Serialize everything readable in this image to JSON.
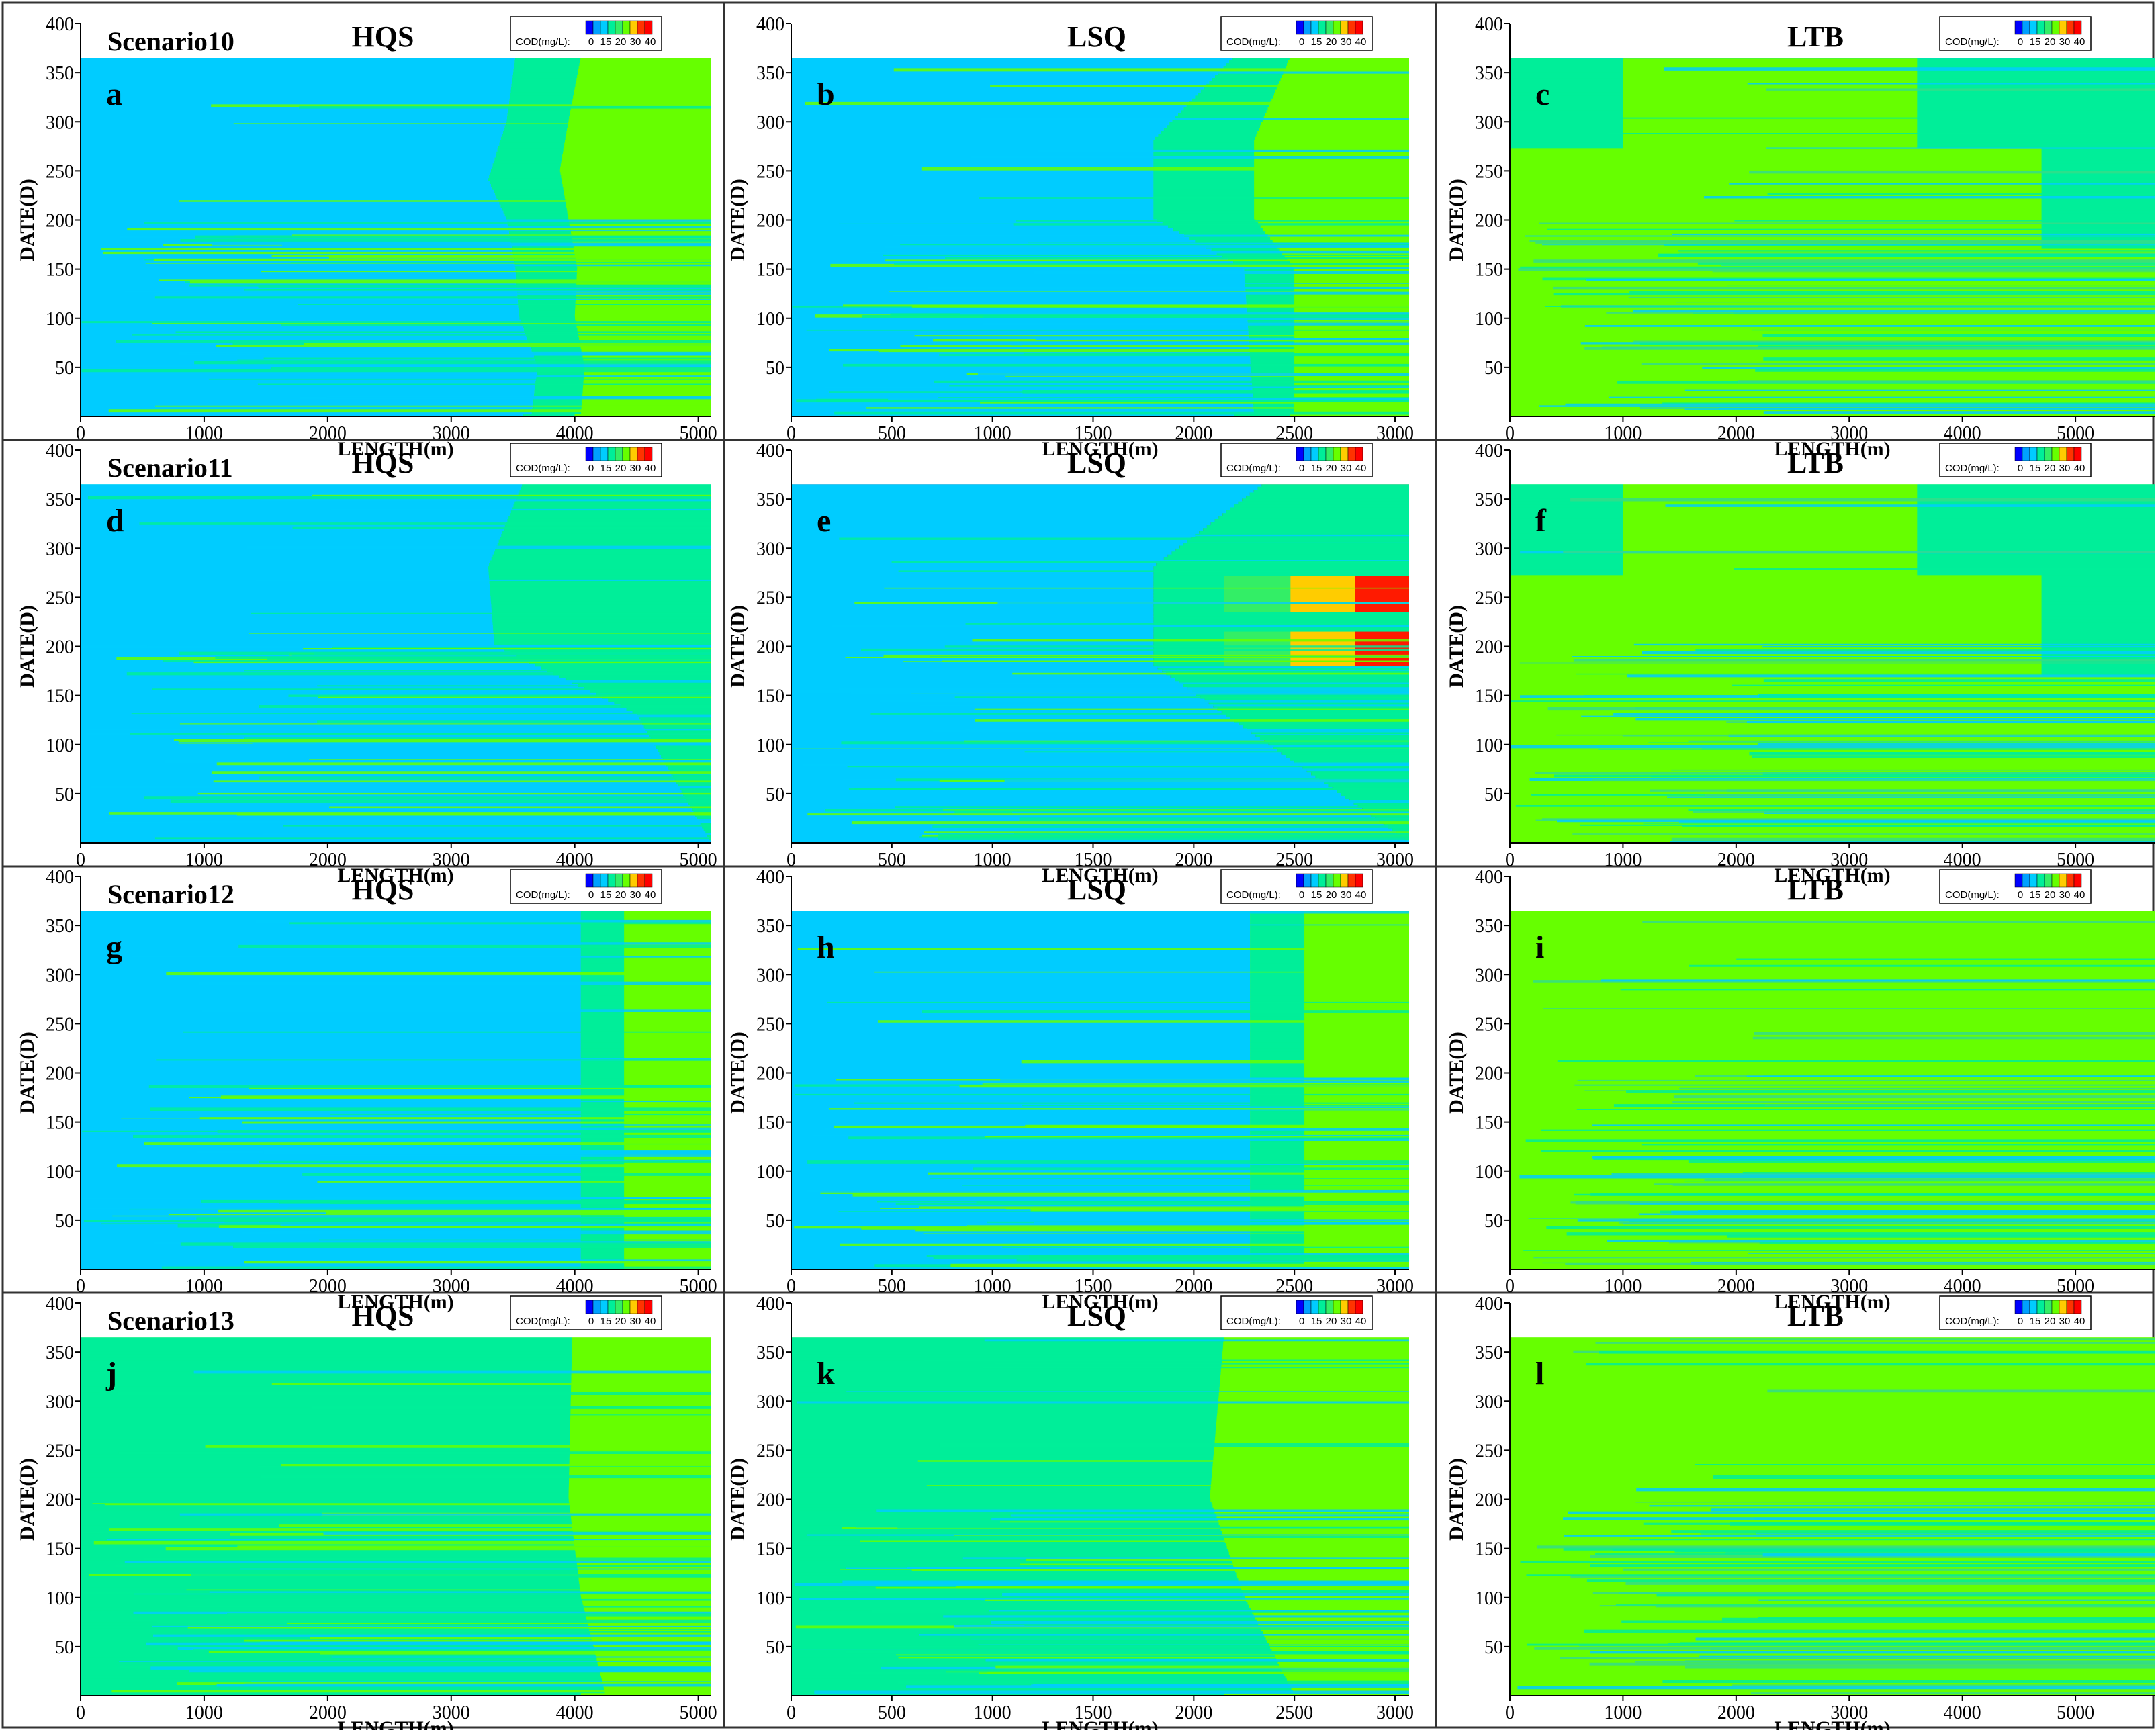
{
  "colorbar": {
    "label": "COD(mg/L):",
    "ticks": [
      "0",
      "15",
      "20",
      "30",
      "40"
    ],
    "colors": [
      "#0000ff",
      "#00a0ff",
      "#00ccff",
      "#00ee99",
      "#33ee66",
      "#66ff00",
      "#ffcc00",
      "#ff3300",
      "#ff0000"
    ]
  },
  "chart_data": [
    {
      "panel": "a",
      "type": "heatmap",
      "scenario_label": "Scenario10",
      "title": "HQS",
      "xlabel": "LENGTH(m)",
      "ylabel": "DATE(D)",
      "xlim": [
        0,
        5100
      ],
      "ylim": [
        0,
        400
      ],
      "xticks": [
        "0",
        "1000",
        "2000",
        "3000",
        "4000",
        "5000"
      ],
      "yticks": [
        "50",
        "100",
        "150",
        "200",
        "250",
        "300",
        "350",
        "400"
      ],
      "boundaries": [
        [
          [
            0,
            3580
          ],
          [
            365,
            3520
          ],
          [
            300,
            3450
          ],
          [
            240,
            3300
          ],
          [
            200,
            3450
          ],
          [
            150,
            3520
          ],
          [
            100,
            3550
          ],
          [
            50,
            3700
          ],
          [
            0,
            3650
          ]
        ],
        [
          [
            0,
            4000
          ],
          [
            365,
            4050
          ],
          [
            300,
            3950
          ],
          [
            250,
            3880
          ],
          [
            200,
            3950
          ],
          [
            150,
            4020
          ],
          [
            100,
            4000
          ],
          [
            50,
            4080
          ],
          [
            0,
            4050
          ]
        ]
      ],
      "zones": [
        "#00ccff",
        "#00ee99",
        "#66ff00"
      ]
    },
    {
      "panel": "b",
      "type": "heatmap",
      "title": "LSQ",
      "xlabel": "LENGTH(m)",
      "ylabel": "DATE(D)",
      "xlim": [
        0,
        3070
      ],
      "ylim": [
        0,
        400
      ],
      "xticks": [
        "0",
        "500",
        "1000",
        "1500",
        "2000",
        "2500",
        "3000"
      ],
      "yticks": [
        "50",
        "100",
        "150",
        "200",
        "250",
        "300",
        "350",
        "400"
      ],
      "boundaries": [
        [
          [
            0,
            2200
          ],
          [
            365,
            2200
          ],
          [
            280,
            1800
          ],
          [
            200,
            1800
          ],
          [
            150,
            2250
          ],
          [
            0,
            2300
          ]
        ],
        [
          [
            0,
            2480
          ],
          [
            365,
            2480
          ],
          [
            280,
            2300
          ],
          [
            200,
            2300
          ],
          [
            150,
            2500
          ],
          [
            0,
            2500
          ]
        ]
      ],
      "zones": [
        "#00ccff",
        "#00ee99",
        "#66ff00"
      ]
    },
    {
      "panel": "c",
      "type": "heatmap",
      "title": "LTB",
      "xlabel": "LENGTH(m)",
      "ylabel": "DATE(D)",
      "xlim": [
        0,
        5700
      ],
      "ylim": [
        0,
        400
      ],
      "xticks": [
        "0",
        "1000",
        "2000",
        "3000",
        "4000",
        "5000"
      ],
      "yticks": [
        "50",
        "100",
        "150",
        "200",
        "250",
        "300",
        "350",
        "400"
      ],
      "boundaries": [],
      "zones": [
        "#00ee99",
        "#66ff00"
      ]
    },
    {
      "panel": "d",
      "type": "heatmap",
      "scenario_label": "Scenario11",
      "title": "HQS",
      "xlabel": "LENGTH(m)",
      "ylabel": "DATE(D)",
      "xlim": [
        0,
        5100
      ],
      "ylim": [
        0,
        400
      ],
      "xticks": [
        "0",
        "1000",
        "2000",
        "3000",
        "4000",
        "5000"
      ],
      "yticks": [
        "50",
        "100",
        "150",
        "200",
        "250",
        "300",
        "350",
        "400"
      ],
      "boundaries": [
        [
          [
            0,
            5100
          ],
          [
            130,
            4500
          ],
          [
            200,
            3350
          ],
          [
            280,
            3300
          ],
          [
            365,
            3580
          ]
        ]
      ],
      "zones": [
        "#00ccff",
        "#00ee99"
      ]
    },
    {
      "panel": "e",
      "type": "heatmap",
      "title": "LSQ",
      "xlabel": "LENGTH(m)",
      "ylabel": "DATE(D)",
      "xlim": [
        0,
        3070
      ],
      "ylim": [
        0,
        400
      ],
      "xticks": [
        "0",
        "500",
        "1000",
        "1500",
        "2000",
        "2500",
        "3000"
      ],
      "yticks": [
        "50",
        "100",
        "150",
        "200",
        "250",
        "300",
        "350",
        "400"
      ],
      "boundaries": [
        [
          [
            0,
            3070
          ],
          [
            180,
            1800
          ],
          [
            280,
            1800
          ],
          [
            365,
            2350
          ]
        ]
      ],
      "zones": [
        "#00ccff",
        "#00ee99",
        "#ffcc00",
        "#ff0000"
      ]
    },
    {
      "panel": "f",
      "type": "heatmap",
      "title": "LTB",
      "xlabel": "LENGTH(m)",
      "ylabel": "DATE(D)",
      "xlim": [
        0,
        5700
      ],
      "ylim": [
        0,
        400
      ],
      "xticks": [
        "0",
        "1000",
        "2000",
        "3000",
        "4000",
        "5000"
      ],
      "yticks": [
        "50",
        "100",
        "150",
        "200",
        "250",
        "300",
        "350",
        "400"
      ],
      "boundaries": [],
      "zones": [
        "#00ee99",
        "#66ff00"
      ]
    },
    {
      "panel": "g",
      "type": "heatmap",
      "scenario_label": "Scenario12",
      "title": "HQS",
      "xlabel": "LENGTH(m)",
      "ylabel": "DATE(D)",
      "xlim": [
        0,
        5100
      ],
      "ylim": [
        0,
        400
      ],
      "xticks": [
        "0",
        "1000",
        "2000",
        "3000",
        "4000",
        "5000"
      ],
      "yticks": [
        "50",
        "100",
        "150",
        "200",
        "250",
        "300",
        "350",
        "400"
      ],
      "boundaries": [
        [
          [
            0,
            4050
          ],
          [
            365,
            4050
          ]
        ],
        [
          [
            0,
            4400
          ],
          [
            365,
            4400
          ]
        ]
      ],
      "zones": [
        "#00ccff",
        "#00ee99",
        "#66ff00"
      ]
    },
    {
      "panel": "h",
      "type": "heatmap",
      "title": "LSQ",
      "xlabel": "LENGTH(m)",
      "ylabel": "DATE(D)",
      "xlim": [
        0,
        3070
      ],
      "ylim": [
        0,
        400
      ],
      "xticks": [
        "0",
        "500",
        "1000",
        "1500",
        "2000",
        "2500",
        "3000"
      ],
      "yticks": [
        "50",
        "100",
        "150",
        "200",
        "250",
        "300",
        "350",
        "400"
      ],
      "boundaries": [
        [
          [
            0,
            2280
          ],
          [
            365,
            2280
          ]
        ],
        [
          [
            0,
            2550
          ],
          [
            365,
            2550
          ]
        ]
      ],
      "zones": [
        "#00ccff",
        "#00ee99",
        "#66ff00"
      ]
    },
    {
      "panel": "i",
      "type": "heatmap",
      "title": "LTB",
      "xlabel": "LENGTH(m)",
      "ylabel": "DATE(D)",
      "xlim": [
        0,
        5700
      ],
      "ylim": [
        0,
        400
      ],
      "xticks": [
        "0",
        "1000",
        "2000",
        "3000",
        "4000",
        "5000"
      ],
      "yticks": [
        "50",
        "100",
        "150",
        "200",
        "250",
        "300",
        "350",
        "400"
      ],
      "boundaries": [],
      "zones": [
        "#66ff00"
      ]
    },
    {
      "panel": "j",
      "type": "heatmap",
      "scenario_label": "Scenario13",
      "title": "HQS",
      "xlabel": "LENGTH(m)",
      "ylabel": "DATE(D)",
      "xlim": [
        0,
        5100
      ],
      "ylim": [
        0,
        400
      ],
      "xticks": [
        "0",
        "1000",
        "2000",
        "3000",
        "4000",
        "5000"
      ],
      "yticks": [
        "50",
        "100",
        "150",
        "200",
        "250",
        "300",
        "350",
        "400"
      ],
      "boundaries": [
        [
          [
            0,
            4050
          ],
          [
            365,
            3980
          ],
          [
            200,
            3950
          ],
          [
            100,
            4050
          ],
          [
            0,
            4250
          ]
        ]
      ],
      "zones": [
        "#00ee99",
        "#66ff00"
      ]
    },
    {
      "panel": "k",
      "type": "heatmap",
      "title": "LSQ",
      "xlabel": "LENGTH(m)",
      "ylabel": "DATE(D)",
      "xlim": [
        0,
        3070
      ],
      "ylim": [
        0,
        400
      ],
      "xticks": [
        "0",
        "500",
        "1000",
        "1500",
        "2000",
        "2500",
        "3000"
      ],
      "yticks": [
        "50",
        "100",
        "150",
        "200",
        "250",
        "300",
        "350",
        "400"
      ],
      "boundaries": [
        [
          [
            0,
            2150
          ],
          [
            365,
            2150
          ],
          [
            200,
            2080
          ],
          [
            100,
            2250
          ],
          [
            0,
            2500
          ]
        ]
      ],
      "zones": [
        "#00ee99",
        "#66ff00"
      ]
    },
    {
      "panel": "l",
      "type": "heatmap",
      "title": "LTB",
      "xlabel": "LENGTH(m)",
      "ylabel": "DATE(D)",
      "xlim": [
        0,
        5700
      ],
      "ylim": [
        0,
        400
      ],
      "xticks": [
        "0",
        "1000",
        "2000",
        "3000",
        "4000",
        "5000"
      ],
      "yticks": [
        "50",
        "100",
        "150",
        "200",
        "250",
        "300",
        "350",
        "400"
      ],
      "boundaries": [],
      "zones": [
        "#66ff00"
      ]
    }
  ]
}
